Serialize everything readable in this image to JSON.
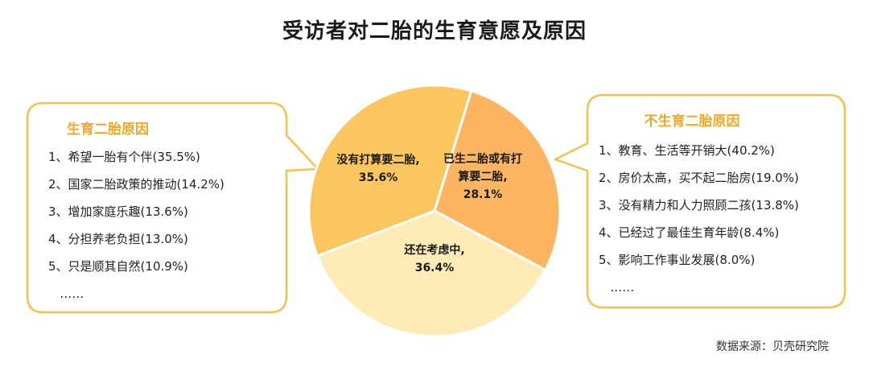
{
  "title": "受访者对二胎的生育意愿及原因",
  "source": "数据来源：贝壳研究院",
  "colors": {
    "slice_dark": "#FCC65E",
    "slice_orange": "#FDB562",
    "slice_light": "#FEEBB6",
    "callout_border": "#F6C04A",
    "callout_title": "#F6A623"
  },
  "chart_data": {
    "type": "pie",
    "title": "受访者对二胎的生育意愿及原因",
    "slices": [
      {
        "label_lines": [
          "没有打算要二胎,",
          "35.6%"
        ],
        "value": 35.6,
        "color": "#FCC65E"
      },
      {
        "label_lines": [
          "已生二胎或有打",
          "算要二胎,",
          "28.1%"
        ],
        "value": 28.1,
        "color": "#FDB562"
      },
      {
        "label_lines": [
          "还在考虑中,",
          "36.4%"
        ],
        "value": 36.4,
        "color": "#FEEBB6"
      }
    ]
  },
  "left_box": {
    "title": "生育二胎原因",
    "items": [
      "1、希望一胎有个伴(35.5%)",
      "2、国家二胎政策的推动(14.2%)",
      "3、增加家庭乐趣(13.6%)",
      "4、分担养老负担(13.0%)",
      "5、只是顺其自然(10.9%)",
      "   ……"
    ]
  },
  "right_box": {
    "title": "不生育二胎原因",
    "items": [
      "1、教育、生活等开销大(40.2%)",
      "2、房价太高，买不起二胎房(19.0%)",
      "3、没有精力和人力照顾二孩(13.8%)",
      "4、已经过了最佳生育年龄(8.4%)",
      "5、影响工作事业发展(8.0%)",
      "   ……"
    ]
  }
}
